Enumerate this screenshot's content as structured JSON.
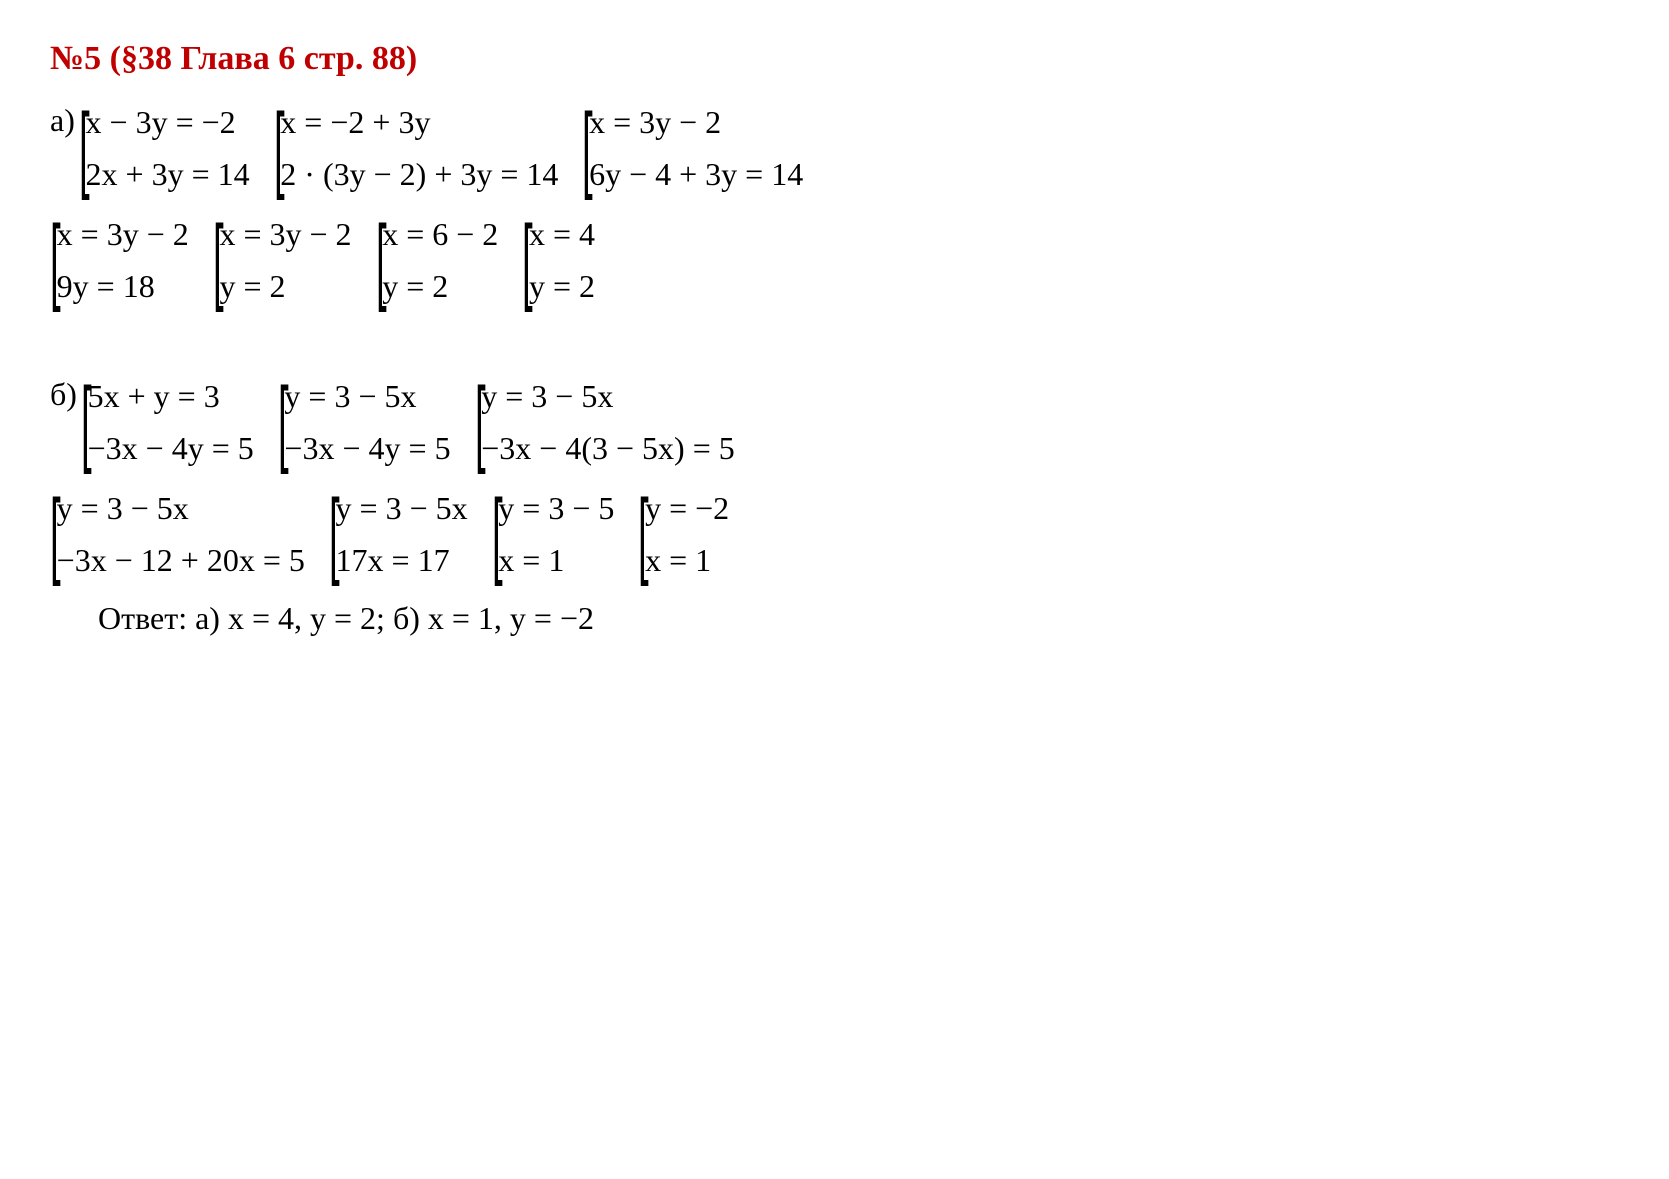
{
  "title": "№5 (§38 Глава 6  стр. 88)",
  "colors": {
    "title": "#c00000",
    "text": "#000000",
    "background": "#ffffff"
  },
  "typography": {
    "font_family": "Times New Roman",
    "body_fontsize_pt": 24,
    "title_fontsize_pt": 26,
    "title_weight": "bold"
  },
  "partA": {
    "label": "а)",
    "row1": {
      "sys1": {
        "line1": "x − 3y = −2",
        "line2": "2x + 3y = 14"
      },
      "sys2": {
        "line1": "x = −2 + 3y",
        "line2": "2 · (3y − 2) + 3y = 14"
      },
      "sys3": {
        "line1": "x = 3y − 2",
        "line2": "6y − 4 + 3y = 14"
      }
    },
    "row2": {
      "sys1": {
        "line1": "x = 3y − 2",
        "line2": "9y = 18"
      },
      "sys2": {
        "line1": "x = 3y − 2",
        "line2": "y = 2"
      },
      "sys3": {
        "line1": "x = 6 − 2",
        "line2": "y = 2"
      },
      "sys4": {
        "line1": "x = 4",
        "line2": "y = 2"
      }
    }
  },
  "partB": {
    "label": "б)",
    "row1": {
      "sys1": {
        "line1": "5x + y = 3",
        "line2": "−3x − 4y = 5"
      },
      "sys2": {
        "line1": "y = 3 − 5x",
        "line2": "−3x − 4y = 5"
      },
      "sys3": {
        "line1": "y = 3 − 5x",
        "line2": "−3x − 4(3 − 5x) = 5"
      }
    },
    "row2": {
      "sys1": {
        "line1": "y = 3 − 5x",
        "line2": "−3x − 12 + 20x = 5"
      },
      "sys2": {
        "line1": "y = 3 − 5x",
        "line2": "17x = 17"
      },
      "sys3": {
        "line1": "y = 3 − 5",
        "line2": "x = 1"
      },
      "sys4": {
        "line1": "y = −2",
        "line2": "x = 1"
      }
    }
  },
  "answer": "Ответ: а) x = 4, y = 2; б) x = 1, y = −2"
}
